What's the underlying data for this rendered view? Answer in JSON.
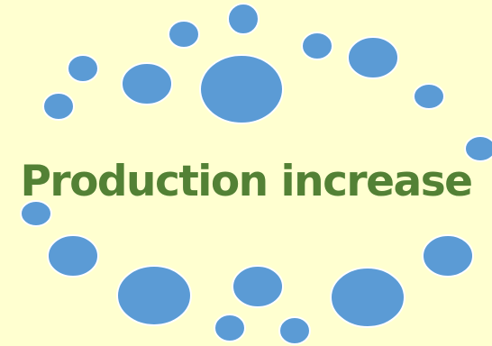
{
  "title": "Production increase",
  "colors": {
    "background": "#FFFFD0",
    "bubble_fill": "#5B9BD5",
    "bubble_stroke": "#FFFFFF",
    "title": "#538135"
  },
  "bubble_count": 20
}
